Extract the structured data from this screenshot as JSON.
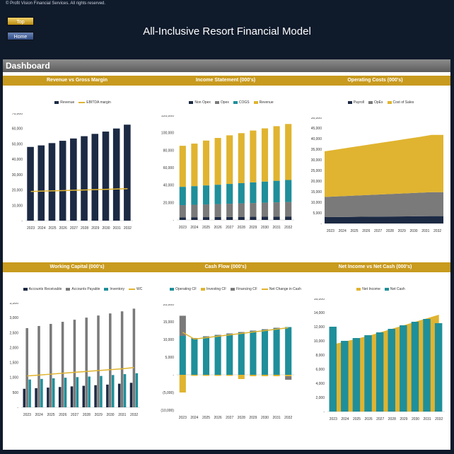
{
  "header": {
    "copyright": "© Profit Vision Financial Services. All rights reserved.",
    "title": "All-Inclusive Resort Financial Model",
    "top_button": "Top",
    "home_button": "Home"
  },
  "dashboard": {
    "label": "Dashboard"
  },
  "colors": {
    "navy": "#1c2a44",
    "gold": "#e0b430",
    "gold_dark": "#c89a1e",
    "teal": "#1f8f9a",
    "gray": "#7a7a7a",
    "dark_gray": "#4a4a4a"
  },
  "chart_data": [
    {
      "id": "rev",
      "type": "bar",
      "title": "Revenue vs Gross Margin",
      "categories": [
        "2023",
        "2024",
        "2025",
        "2026",
        "2027",
        "2028",
        "2029",
        "2030",
        "2031",
        "2032"
      ],
      "series": [
        {
          "name": "Revenue",
          "kind": "bar",
          "color": "#1c2a44",
          "values": [
            48000,
            49000,
            50500,
            52000,
            53500,
            55000,
            56500,
            58000,
            60000,
            62500
          ]
        },
        {
          "name": "EBITDA margin",
          "kind": "line",
          "color": "#e0b430",
          "values": [
            19000,
            19200,
            19400,
            19600,
            19800,
            20000,
            20200,
            20400,
            20600,
            20800
          ]
        }
      ],
      "ylim": [
        0,
        70000
      ],
      "yticks": [
        "-",
        "10,000",
        "20,000",
        "30,000",
        "40,000",
        "50,000",
        "60,000",
        "70,000"
      ],
      "legend": "top"
    },
    {
      "id": "inc",
      "type": "bar",
      "stacked": true,
      "title": "Income Statement (000's)",
      "categories": [
        "2023",
        "2024",
        "2025",
        "2026",
        "2027",
        "2028",
        "2029",
        "2030",
        "2031",
        "2032"
      ],
      "series": [
        {
          "name": "Non Opex",
          "kind": "bar",
          "color": "#1c2a44",
          "values": [
            3000,
            3100,
            3200,
            3300,
            3400,
            3500,
            3600,
            3700,
            3800,
            3900
          ]
        },
        {
          "name": "Opex",
          "kind": "bar",
          "color": "#7a7a7a",
          "values": [
            14000,
            14300,
            14600,
            14900,
            15200,
            15500,
            15800,
            16100,
            16400,
            16700
          ]
        },
        {
          "name": "COGS",
          "kind": "bar",
          "color": "#1f8f9a",
          "values": [
            21000,
            21400,
            21800,
            22200,
            22700,
            23200,
            23700,
            24200,
            24700,
            25200
          ]
        },
        {
          "name": "Revenue",
          "kind": "bar",
          "color": "#e0b430",
          "values": [
            47000,
            48700,
            51400,
            53600,
            55700,
            57300,
            59400,
            61000,
            62600,
            64200
          ]
        }
      ],
      "ylim": [
        0,
        120000
      ],
      "yticks": [
        "-",
        "20,000",
        "40,000",
        "60,000",
        "80,000",
        "100,000",
        "120,000"
      ],
      "legend": "top"
    },
    {
      "id": "opc",
      "type": "area",
      "stacked": true,
      "title": "Operating Costs (000's)",
      "categories": [
        "2023",
        "2024",
        "2025",
        "2026",
        "2027",
        "2028",
        "2029",
        "2030",
        "2031",
        "2032"
      ],
      "series": [
        {
          "name": "Payroll",
          "kind": "area",
          "color": "#1c2a44",
          "values": [
            3000,
            3050,
            3100,
            3150,
            3200,
            3250,
            3300,
            3350,
            3400,
            3450
          ]
        },
        {
          "name": "OpEx",
          "kind": "area",
          "color": "#7a7a7a",
          "values": [
            9500,
            9700,
            9900,
            10100,
            10300,
            10500,
            10700,
            10900,
            11100,
            11300
          ]
        },
        {
          "name": "Cost of Sales",
          "kind": "area",
          "color": "#e0b430",
          "values": [
            21500,
            22100,
            22700,
            23300,
            23900,
            24500,
            25100,
            25700,
            26300,
            27000
          ]
        }
      ],
      "ylim": [
        0,
        50000
      ],
      "yticks": [
        "-",
        "5,000",
        "10,000",
        "15,000",
        "20,000",
        "25,000",
        "30,000",
        "35,000",
        "40,000",
        "45,000",
        "50,000"
      ],
      "legend": "top"
    },
    {
      "id": "wc",
      "type": "bar",
      "title": "Working Capital (000's)",
      "categories": [
        "2023",
        "2024",
        "2025",
        "2026",
        "2027",
        "2028",
        "2029",
        "2030",
        "2031",
        "2032"
      ],
      "series": [
        {
          "name": "Accounts Receivable",
          "kind": "bar",
          "color": "#1c2a44",
          "values": [
            620,
            640,
            660,
            680,
            700,
            720,
            740,
            760,
            790,
            820
          ]
        },
        {
          "name": "Accounts Payable",
          "kind": "bar",
          "color": "#7a7a7a",
          "values": [
            2650,
            2720,
            2790,
            2860,
            2930,
            3000,
            3070,
            3140,
            3210,
            3300
          ]
        },
        {
          "name": "Inventory",
          "kind": "bar",
          "color": "#1f8f9a",
          "values": [
            930,
            950,
            970,
            990,
            1010,
            1030,
            1050,
            1080,
            1110,
            1140
          ]
        },
        {
          "name": "WC",
          "kind": "line",
          "color": "#e0b430",
          "values": [
            1050,
            1080,
            1110,
            1140,
            1170,
            1200,
            1230,
            1260,
            1290,
            1330
          ]
        }
      ],
      "ylim": [
        0,
        3500
      ],
      "yticks": [
        "-",
        "500",
        "1,000",
        "1,500",
        "2,000",
        "2,500",
        "3,000",
        "3,500"
      ],
      "legend": "top"
    },
    {
      "id": "cf",
      "type": "bar",
      "stacked": true,
      "title": "Cash Flow (000's)",
      "categories": [
        "2023",
        "2024",
        "2025",
        "2026",
        "2027",
        "2028",
        "2029",
        "2030",
        "2031",
        "2032"
      ],
      "series": [
        {
          "name": "Operating CF",
          "kind": "bar",
          "color": "#1f8f9a",
          "values": [
            11000,
            10200,
            10700,
            11100,
            11500,
            11900,
            12300,
            12700,
            13100,
            13500
          ]
        },
        {
          "name": "Investing CF",
          "kind": "bar",
          "color": "#e0b430",
          "values": [
            -5000,
            -300,
            -300,
            -300,
            -300,
            -1200,
            -400,
            -400,
            -400,
            -400
          ]
        },
        {
          "name": "Financing CF",
          "kind": "bar",
          "color": "#7a7a7a",
          "values": [
            5700,
            200,
            200,
            200,
            200,
            200,
            200,
            200,
            200,
            -1000
          ]
        },
        {
          "name": "Net Change in Cash",
          "kind": "line",
          "color": "#e0b430",
          "values": [
            12000,
            10100,
            10500,
            10900,
            11300,
            11700,
            12100,
            12500,
            12900,
            13300
          ]
        }
      ],
      "ylim": [
        -10000,
        20000
      ],
      "yticks": [
        "(10,000)",
        "(5,000)",
        "-",
        "5,000",
        "10,000",
        "15,000",
        "20,000"
      ],
      "legend": "top"
    },
    {
      "id": "ni",
      "type": "bar",
      "title": "Net Income vs Net Cash (000's)",
      "categories": [
        "2023",
        "2024",
        "2025",
        "2026",
        "2027",
        "2028",
        "2029",
        "2030",
        "2031",
        "2032"
      ],
      "series": [
        {
          "name": "Net Income",
          "kind": "area",
          "color": "#e0b430",
          "values": [
            9500,
            9900,
            10300,
            10700,
            11200,
            11700,
            12200,
            12700,
            13200,
            13700
          ]
        },
        {
          "name": "Net Cash",
          "kind": "bar",
          "color": "#1f8f9a",
          "values": [
            12000,
            10000,
            10400,
            10800,
            11200,
            11700,
            12200,
            12700,
            13100,
            12500
          ]
        }
      ],
      "ylim": [
        0,
        16000
      ],
      "yticks": [
        "-",
        "2,000",
        "4,000",
        "6,000",
        "8,000",
        "10,000",
        "12,000",
        "14,000",
        "16,000"
      ],
      "legend": "top"
    }
  ]
}
